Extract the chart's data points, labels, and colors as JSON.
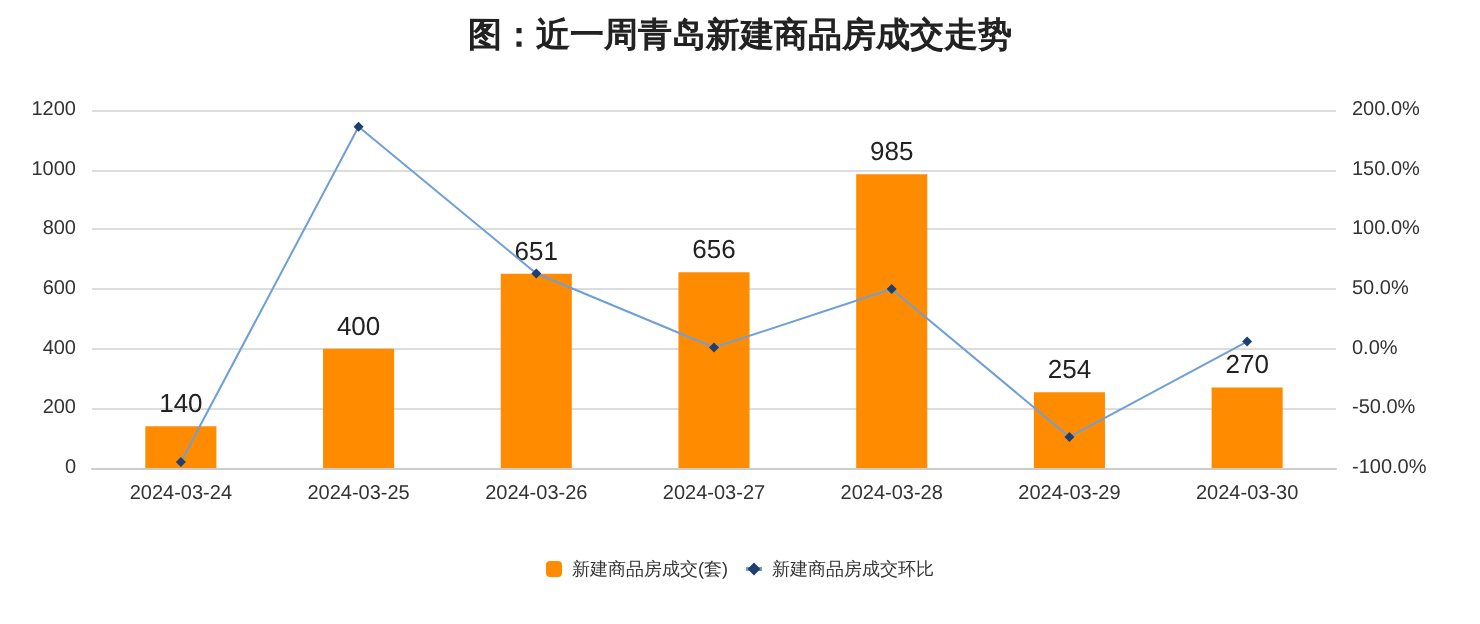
{
  "chart_data": {
    "type": "bar",
    "title": "图：近一周青岛新建商品房成交走势",
    "categories": [
      "2024-03-24",
      "2024-03-25",
      "2024-03-26",
      "2024-03-27",
      "2024-03-28",
      "2024-03-29",
      "2024-03-30"
    ],
    "series": [
      {
        "name": "新建商品房成交(套)",
        "color": "#ff8c00",
        "values": [
          140,
          400,
          651,
          656,
          985,
          254,
          270
        ],
        "value_labels": [
          "140",
          "400",
          "651",
          "656",
          "985",
          "254",
          "270"
        ]
      },
      {
        "name": "新建商品房成交环比",
        "type": "line",
        "axis": "y2",
        "color": "#6f9fd6",
        "marker": "diamond",
        "values": [
          -95,
          186,
          63,
          1,
          50,
          -74,
          6
        ]
      }
    ],
    "ylim": [
      0,
      1200
    ],
    "yticks": [
      0,
      200,
      400,
      600,
      800,
      1000,
      1200
    ],
    "y2lim": [
      -100,
      200
    ],
    "y2ticks": [
      {
        "value": -100,
        "label": "-100.0%"
      },
      {
        "value": -50,
        "label": "-50.0%"
      },
      {
        "value": 0,
        "label": "0.0%"
      },
      {
        "value": 50,
        "label": "50.0%"
      },
      {
        "value": 100,
        "label": "100.0%"
      },
      {
        "value": 150,
        "label": "150.0%"
      },
      {
        "value": 200,
        "label": "200.0%"
      }
    ],
    "grid": "y",
    "legend": "bottom"
  }
}
